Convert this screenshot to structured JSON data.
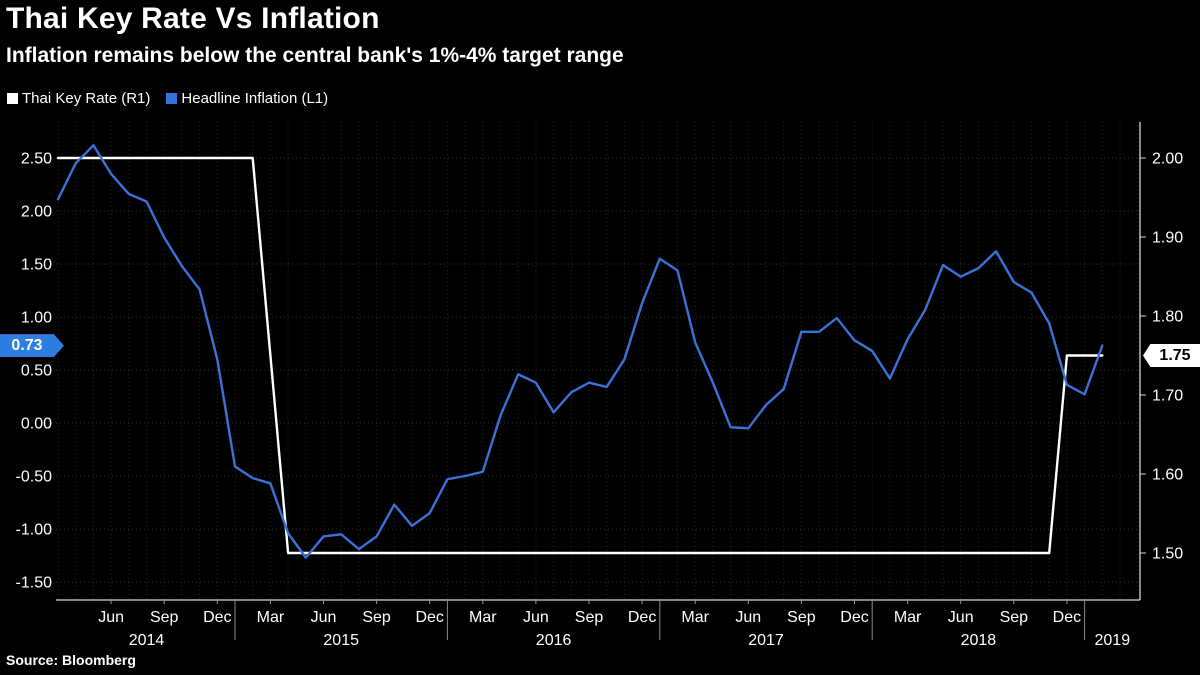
{
  "header": {
    "title": "Thai Key Rate Vs Inflation",
    "subtitle": "Inflation remains below the central bank's 1%-4% target range"
  },
  "legend": [
    {
      "label": "Thai Key Rate (R1)",
      "color": "#ffffff"
    },
    {
      "label": "Headline Inflation (L1)",
      "color": "#3a72d8"
    }
  ],
  "footer": {
    "source": "Source: Bloomberg"
  },
  "colors": {
    "background": "#000000",
    "key_rate_line": "#ffffff",
    "inflation_line": "#3a72d8",
    "inflation_badge_bg": "#2e7de0",
    "key_rate_badge_bg": "#ffffff"
  },
  "chart_data": {
    "type": "line",
    "title": "Thai Key Rate Vs Inflation",
    "subtitle": "Inflation remains below the central bank's 1%-4% target range",
    "grid": true,
    "x": {
      "start": "2014-03",
      "months": 60,
      "tick_labels": [
        "Jun",
        "Sep",
        "Dec",
        "Mar",
        "Jun",
        "Sep",
        "Dec",
        "Mar",
        "Jun",
        "Sep",
        "Dec",
        "Mar",
        "Jun",
        "Sep",
        "Dec",
        "Mar",
        "Jun",
        "Sep",
        "Dec"
      ],
      "tick_first_index": 3,
      "tick_step": 3,
      "year_labels": [
        "2014",
        "2015",
        "2016",
        "2017",
        "2018",
        "2019"
      ],
      "year_boundary_indices": [
        10,
        22,
        34,
        46,
        58
      ]
    },
    "left_axis": {
      "ticks": [
        "2.50",
        "2.00",
        "1.50",
        "1.00",
        "0.50",
        "0.00",
        "-0.50",
        "-1.00",
        "-1.50"
      ],
      "range": [
        -1.67,
        2.84
      ]
    },
    "right_axis": {
      "ticks": [
        "2.00",
        "1.90",
        "1.80",
        "1.70",
        "1.60",
        "1.50"
      ],
      "range": [
        1.44,
        2.05
      ]
    },
    "series": [
      {
        "name": "Thai Key Rate (R1)",
        "axis": "right",
        "color": "#ffffff",
        "values": [
          2.0,
          2.0,
          2.0,
          2.0,
          2.0,
          2.0,
          2.0,
          2.0,
          2.0,
          2.0,
          2.0,
          2.0,
          1.75,
          1.5,
          1.5,
          1.5,
          1.5,
          1.5,
          1.5,
          1.5,
          1.5,
          1.5,
          1.5,
          1.5,
          1.5,
          1.5,
          1.5,
          1.5,
          1.5,
          1.5,
          1.5,
          1.5,
          1.5,
          1.5,
          1.5,
          1.5,
          1.5,
          1.5,
          1.5,
          1.5,
          1.5,
          1.5,
          1.5,
          1.5,
          1.5,
          1.5,
          1.5,
          1.5,
          1.5,
          1.5,
          1.5,
          1.5,
          1.5,
          1.5,
          1.5,
          1.5,
          1.5,
          1.75,
          1.75,
          1.75
        ]
      },
      {
        "name": "Headline Inflation (L1)",
        "axis": "left",
        "color": "#3a72d8",
        "values": [
          2.11,
          2.45,
          2.62,
          2.35,
          2.16,
          2.09,
          1.75,
          1.48,
          1.26,
          0.6,
          -0.41,
          -0.52,
          -0.57,
          -1.04,
          -1.27,
          -1.07,
          -1.05,
          -1.19,
          -1.07,
          -0.77,
          -0.97,
          -0.85,
          -0.53,
          -0.5,
          -0.46,
          0.07,
          0.46,
          0.38,
          0.1,
          0.29,
          0.38,
          0.34,
          0.6,
          1.13,
          1.55,
          1.44,
          0.76,
          0.38,
          -0.04,
          -0.05,
          0.17,
          0.32,
          0.86,
          0.86,
          0.99,
          0.78,
          0.68,
          0.42,
          0.79,
          1.07,
          1.49,
          1.38,
          1.46,
          1.62,
          1.33,
          1.23,
          0.94,
          0.36,
          0.27,
          0.73
        ]
      }
    ],
    "end_labels": [
      {
        "series": "Headline Inflation (L1)",
        "text": "0.73",
        "value": 0.73,
        "axis": "left",
        "side": "left",
        "bg": "#2e7de0",
        "fg": "#ffffff"
      },
      {
        "series": "Thai Key Rate (R1)",
        "text": "1.75",
        "value": 1.75,
        "axis": "right",
        "side": "right",
        "bg": "#ffffff",
        "fg": "#000000"
      }
    ]
  }
}
